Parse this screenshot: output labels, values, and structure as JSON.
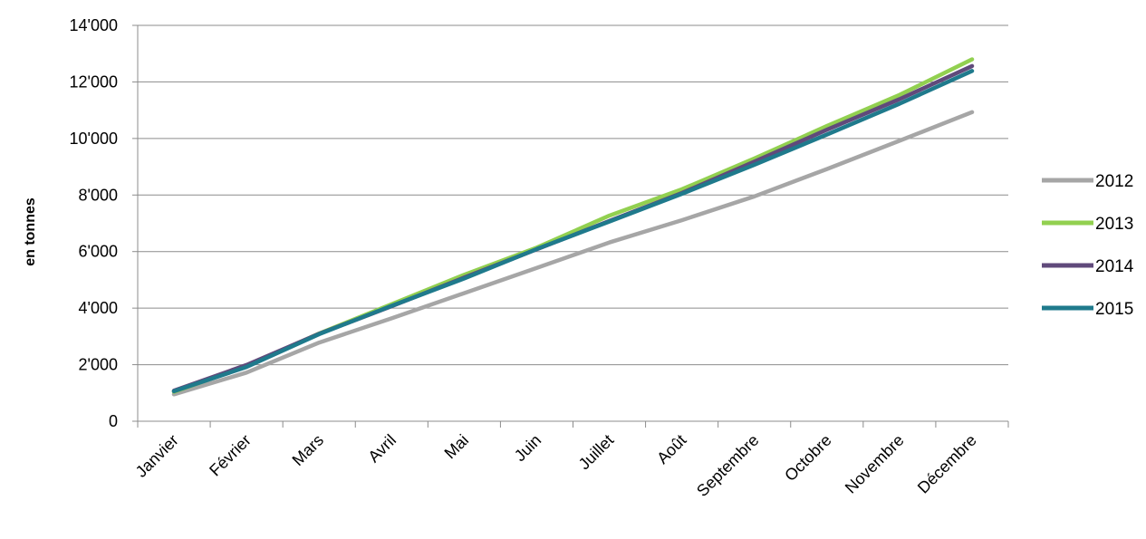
{
  "chart_data": {
    "type": "line",
    "title": "",
    "xlabel": "",
    "ylabel": "en tonnes",
    "ylim": [
      0,
      14000
    ],
    "yticks": [
      0,
      2000,
      4000,
      6000,
      8000,
      10000,
      12000,
      14000
    ],
    "ytick_labels": [
      "0",
      "2'000",
      "4'000",
      "6'000",
      "8'000",
      "10'000",
      "12'000",
      "14'000"
    ],
    "grid": "horizontal",
    "legend_position": "right",
    "categories": [
      "Janvier",
      "Février",
      "Mars",
      "Avril",
      "Mai",
      "Juin",
      "Juillet",
      "Août",
      "Septembre",
      "Octobre",
      "Novembre",
      "Décembre"
    ],
    "series": [
      {
        "name": "2012",
        "color": "#a6a6a6",
        "values": [
          950,
          1720,
          2780,
          3640,
          4530,
          5420,
          6320,
          7110,
          7950,
          8920,
          9920,
          10930
        ]
      },
      {
        "name": "2013",
        "color": "#92d050",
        "values": [
          1040,
          1940,
          3100,
          4140,
          5180,
          6140,
          7270,
          8200,
          9290,
          10440,
          11540,
          12800
        ]
      },
      {
        "name": "2014",
        "color": "#604a7b",
        "values": [
          1080,
          1990,
          3090,
          4070,
          5080,
          6080,
          7080,
          8070,
          9180,
          10310,
          11390,
          12560
        ]
      },
      {
        "name": "2015",
        "color": "#1f7a8c",
        "values": [
          1060,
          1920,
          3080,
          4080,
          5050,
          6090,
          7060,
          8040,
          9070,
          10140,
          11230,
          12390
        ]
      }
    ]
  }
}
